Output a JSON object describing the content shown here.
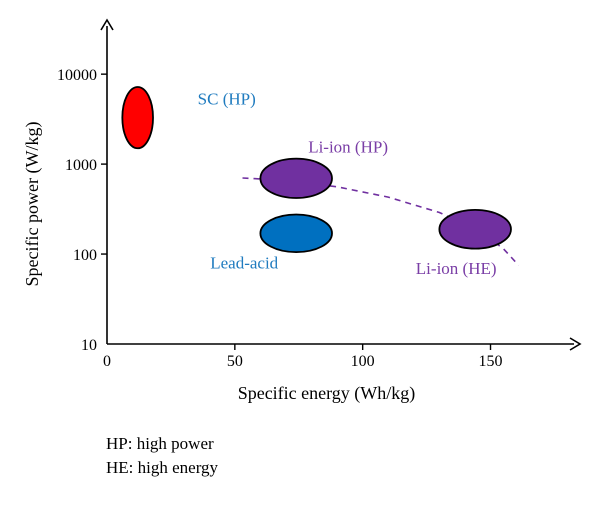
{
  "chart_data": {
    "type": "scatter",
    "xlabel": "Specific energy (Wh/kg)",
    "ylabel": "Specific power (W/kg)",
    "xlim": [
      0,
      185
    ],
    "ylim": [
      10,
      40000
    ],
    "yscale": "log",
    "xticks": [
      0,
      50,
      100,
      150
    ],
    "yticks": [
      10,
      100,
      1000,
      10000
    ],
    "grid": false,
    "regions": [
      {
        "name": "SC (HP)",
        "x_center": 12,
        "y_center": 3300,
        "x_halfwidth": 6,
        "y_range": [
          1500,
          7200
        ],
        "color": "#ff0000"
      },
      {
        "name": "Li-ion (HP)",
        "x_center": 74,
        "y_center": 700,
        "x_halfwidth": 14,
        "y_range": [
          420,
          1150
        ],
        "color": "#7030a0"
      },
      {
        "name": "Lead-acid",
        "x_center": 74,
        "y_center": 170,
        "x_halfwidth": 14,
        "y_range": [
          105,
          275
        ],
        "color": "#0070c0"
      },
      {
        "name": "Li-ion (HE)",
        "x_center": 144,
        "y_center": 190,
        "x_halfwidth": 14,
        "y_range": [
          115,
          310
        ],
        "color": "#7030a0"
      }
    ],
    "trend": {
      "x": [
        53,
        70,
        90,
        110,
        130,
        145,
        155,
        161
      ],
      "y": [
        700,
        660,
        560,
        430,
        290,
        185,
        115,
        75
      ],
      "color": "#7030a0"
    }
  },
  "notes": [
    "HP: high power",
    "HE: high energy"
  ]
}
